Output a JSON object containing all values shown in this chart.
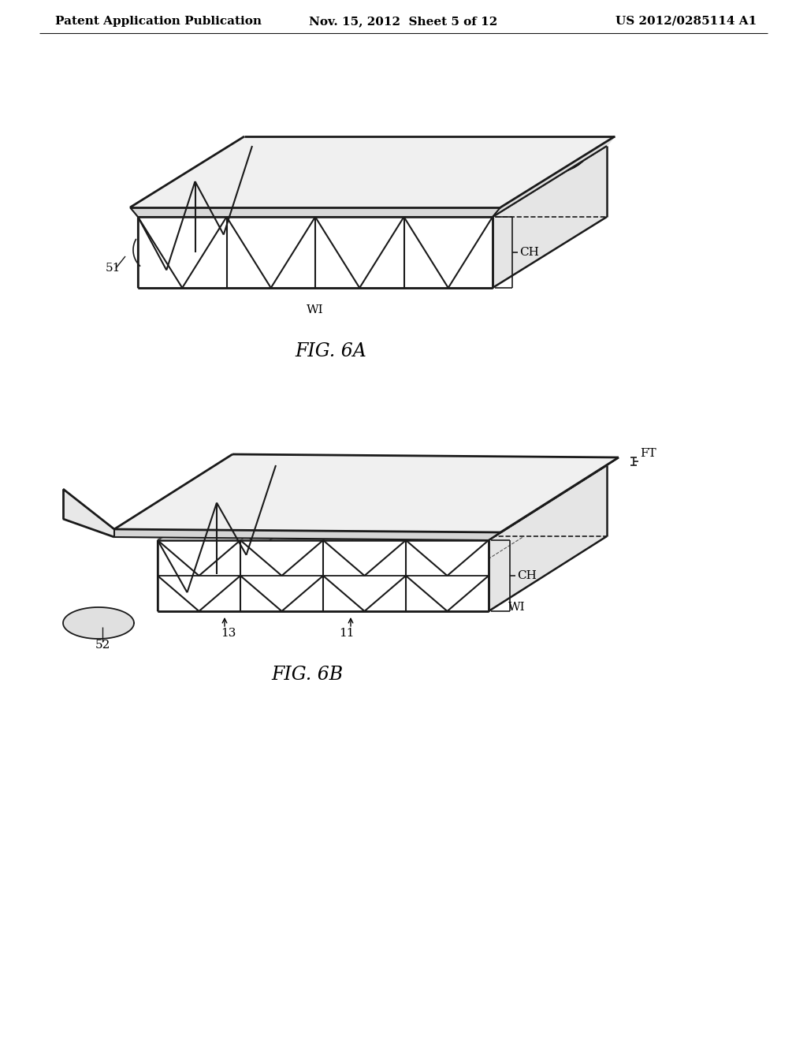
{
  "background_color": "#ffffff",
  "line_color": "#1a1a1a",
  "header_left": "Patent Application Publication",
  "header_mid": "Nov. 15, 2012  Sheet 5 of 12",
  "header_right": "US 2012/0285114 A1",
  "fig6a_label": "FIG. 6A",
  "fig6b_label": "FIG. 6B",
  "header_fontsize": 11,
  "annotation_fontsize": 11,
  "caption_fontsize": 17
}
